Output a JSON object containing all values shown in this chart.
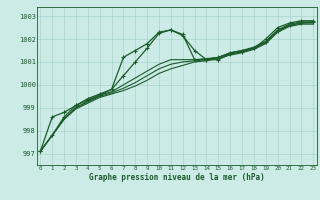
{
  "title": "",
  "xlabel": "Graphe pression niveau de la mer (hPa)",
  "bg_color": "#cceae6",
  "grid_color": "#aad4ce",
  "line_color": "#1a5c2a",
  "x_values": [
    0,
    1,
    2,
    3,
    4,
    5,
    6,
    7,
    8,
    9,
    10,
    11,
    12,
    13,
    14,
    15,
    16,
    17,
    18,
    19,
    20,
    21,
    22,
    23
  ],
  "ylim": [
    996.5,
    1003.4
  ],
  "yticks": [
    997,
    998,
    999,
    1000,
    1001,
    1002,
    1003
  ],
  "series": [
    [
      997.1,
      998.6,
      998.8,
      999.1,
      999.35,
      999.55,
      999.8,
      1000.4,
      1001.0,
      1001.6,
      1002.25,
      1002.4,
      1002.15,
      1001.5,
      1001.1,
      1001.1,
      1001.35,
      1001.45,
      1001.6,
      1001.85,
      1002.35,
      1002.6,
      1002.7,
      1002.75
    ],
    [
      997.1,
      997.8,
      998.6,
      999.1,
      999.4,
      999.6,
      999.8,
      1001.2,
      1001.5,
      1001.8,
      1002.3,
      1002.4,
      1002.2,
      1001.1,
      1001.1,
      1001.2,
      1001.4,
      1001.5,
      1001.6,
      1002.0,
      1002.5,
      1002.7,
      1002.8,
      1002.8
    ],
    [
      997.1,
      997.8,
      998.5,
      999.0,
      999.3,
      999.55,
      999.7,
      1000.0,
      1000.3,
      1000.6,
      1000.9,
      1001.1,
      1001.1,
      1001.1,
      1001.15,
      1001.2,
      1001.4,
      1001.5,
      1001.65,
      1001.9,
      1002.4,
      1002.65,
      1002.75,
      1002.75
    ],
    [
      997.1,
      997.8,
      998.5,
      999.0,
      999.25,
      999.5,
      999.65,
      999.85,
      1000.1,
      1000.4,
      1000.7,
      1000.9,
      1001.0,
      1001.05,
      1001.1,
      1001.2,
      1001.35,
      1001.45,
      1001.6,
      1001.85,
      1002.35,
      1002.6,
      1002.7,
      1002.7
    ],
    [
      997.1,
      997.8,
      998.5,
      998.95,
      999.2,
      999.45,
      999.6,
      999.75,
      999.95,
      1000.2,
      1000.5,
      1000.7,
      1000.85,
      1001.0,
      1001.05,
      1001.15,
      1001.3,
      1001.4,
      1001.55,
      1001.8,
      1002.3,
      1002.55,
      1002.65,
      1002.65
    ]
  ],
  "has_markers": [
    true,
    true,
    false,
    false,
    false
  ],
  "linewidths": [
    0.9,
    0.9,
    0.8,
    0.8,
    0.8
  ],
  "marker_size": 2.5
}
